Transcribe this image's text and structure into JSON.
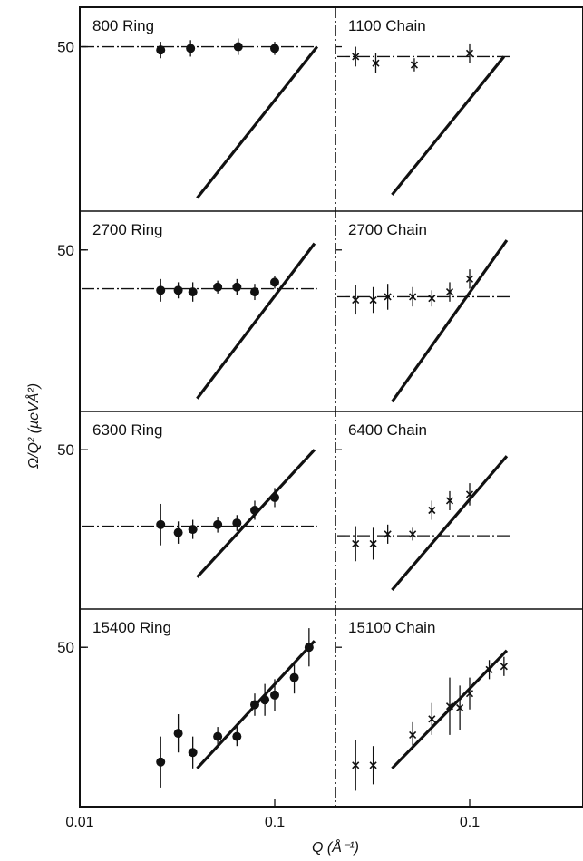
{
  "chart_data": {
    "type": "scatter",
    "ylabel": "Ω/Q² (µeVÅ²)",
    "xlabel": "Q (Å⁻¹)",
    "x_scale": "log",
    "xlim": [
      0.01,
      0.3
    ],
    "x_ticks": [
      {
        "value": 0.01,
        "label": "0.01"
      },
      {
        "value": 0.1,
        "label": "0.1"
      }
    ],
    "y_tick_label": "50",
    "layout": "4 rows × 2 columns",
    "panels": [
      {
        "title": "800 Ring",
        "marker": "dot",
        "plateau": 50,
        "slope_line": [
          [
            0.04,
            4
          ],
          [
            0.165,
            50
          ]
        ],
        "points": [
          {
            "x": 0.026,
            "y": 49,
            "err": 2.5
          },
          {
            "x": 0.037,
            "y": 49.5,
            "err": 2.5
          },
          {
            "x": 0.065,
            "y": 50,
            "err": 2.5
          },
          {
            "x": 0.1,
            "y": 49.5,
            "err": 2
          }
        ]
      },
      {
        "title": "1100 Chain",
        "marker": "cross",
        "plateau": 47,
        "slope_line": [
          [
            0.04,
            5
          ],
          [
            0.15,
            47
          ]
        ],
        "points": [
          {
            "x": 0.026,
            "y": 47,
            "err": 3
          },
          {
            "x": 0.033,
            "y": 45,
            "err": 3
          },
          {
            "x": 0.052,
            "y": 44.5,
            "err": 2
          },
          {
            "x": 0.1,
            "y": 48,
            "err": 3
          }
        ]
      },
      {
        "title": "2700 Ring",
        "marker": "dot",
        "plateau": 38,
        "slope_line": [
          [
            0.04,
            4
          ],
          [
            0.16,
            52
          ]
        ],
        "points": [
          {
            "x": 0.026,
            "y": 37.5,
            "err": 3.5
          },
          {
            "x": 0.032,
            "y": 37.5,
            "err": 2.5
          },
          {
            "x": 0.038,
            "y": 37,
            "err": 3
          },
          {
            "x": 0.051,
            "y": 38.5,
            "err": 2
          },
          {
            "x": 0.064,
            "y": 38.5,
            "err": 2.5
          },
          {
            "x": 0.079,
            "y": 37,
            "err": 2.5
          },
          {
            "x": 0.1,
            "y": 40,
            "err": 2
          }
        ]
      },
      {
        "title": "2700 Chain",
        "marker": "cross",
        "plateau": 35.5,
        "slope_line": [
          [
            0.04,
            3
          ],
          [
            0.155,
            53
          ]
        ],
        "points": [
          {
            "x": 0.026,
            "y": 34.5,
            "err": 4.5
          },
          {
            "x": 0.032,
            "y": 34.5,
            "err": 4
          },
          {
            "x": 0.038,
            "y": 35.5,
            "err": 4
          },
          {
            "x": 0.051,
            "y": 35.5,
            "err": 3
          },
          {
            "x": 0.064,
            "y": 35,
            "err": 2.5
          },
          {
            "x": 0.079,
            "y": 37,
            "err": 3
          },
          {
            "x": 0.1,
            "y": 41,
            "err": 3
          }
        ]
      },
      {
        "title": "6300 Ring",
        "marker": "dot",
        "plateau": 26,
        "slope_line": [
          [
            0.04,
            10
          ],
          [
            0.16,
            50
          ]
        ],
        "points": [
          {
            "x": 0.026,
            "y": 26.5,
            "err": 6.5
          },
          {
            "x": 0.032,
            "y": 24,
            "err": 3.5
          },
          {
            "x": 0.038,
            "y": 25,
            "err": 3
          },
          {
            "x": 0.051,
            "y": 26.5,
            "err": 2.5
          },
          {
            "x": 0.064,
            "y": 27,
            "err": 2.5
          },
          {
            "x": 0.079,
            "y": 31,
            "err": 3
          },
          {
            "x": 0.1,
            "y": 35,
            "err": 3
          }
        ]
      },
      {
        "title": "6400 Chain",
        "marker": "cross",
        "plateau": 23,
        "slope_line": [
          [
            0.04,
            6
          ],
          [
            0.155,
            48
          ]
        ],
        "points": [
          {
            "x": 0.026,
            "y": 20.5,
            "err": 5.5
          },
          {
            "x": 0.032,
            "y": 20.5,
            "err": 5
          },
          {
            "x": 0.038,
            "y": 23.5,
            "err": 3
          },
          {
            "x": 0.051,
            "y": 23.5,
            "err": 2
          },
          {
            "x": 0.064,
            "y": 31,
            "err": 3
          },
          {
            "x": 0.079,
            "y": 34,
            "err": 3
          },
          {
            "x": 0.1,
            "y": 36,
            "err": 3.5
          }
        ]
      },
      {
        "title": "15400 Ring",
        "marker": "dot",
        "plateau": null,
        "slope_line": [
          [
            0.04,
            12
          ],
          [
            0.16,
            52
          ]
        ],
        "points": [
          {
            "x": 0.026,
            "y": 14,
            "err": 8
          },
          {
            "x": 0.032,
            "y": 23,
            "err": 6
          },
          {
            "x": 0.038,
            "y": 17,
            "err": 5
          },
          {
            "x": 0.051,
            "y": 22,
            "err": 3
          },
          {
            "x": 0.064,
            "y": 22,
            "err": 3
          },
          {
            "x": 0.079,
            "y": 32,
            "err": 3.5
          },
          {
            "x": 0.089,
            "y": 33.5,
            "err": 5
          },
          {
            "x": 0.1,
            "y": 35,
            "err": 5
          },
          {
            "x": 0.126,
            "y": 40.5,
            "err": 5
          },
          {
            "x": 0.15,
            "y": 50,
            "err": 6
          }
        ]
      },
      {
        "title": "15100 Chain",
        "marker": "cross",
        "plateau": null,
        "slope_line": [
          [
            0.04,
            12
          ],
          [
            0.155,
            49
          ]
        ],
        "points": [
          {
            "x": 0.026,
            "y": 13,
            "err": 8
          },
          {
            "x": 0.032,
            "y": 13,
            "err": 6
          },
          {
            "x": 0.051,
            "y": 22.5,
            "err": 4
          },
          {
            "x": 0.064,
            "y": 27.5,
            "err": 5
          },
          {
            "x": 0.079,
            "y": 31.5,
            "err": 9
          },
          {
            "x": 0.089,
            "y": 31,
            "err": 7
          },
          {
            "x": 0.1,
            "y": 35.5,
            "err": 5
          },
          {
            "x": 0.126,
            "y": 43,
            "err": 3
          },
          {
            "x": 0.15,
            "y": 44,
            "err": 3
          }
        ]
      }
    ]
  }
}
